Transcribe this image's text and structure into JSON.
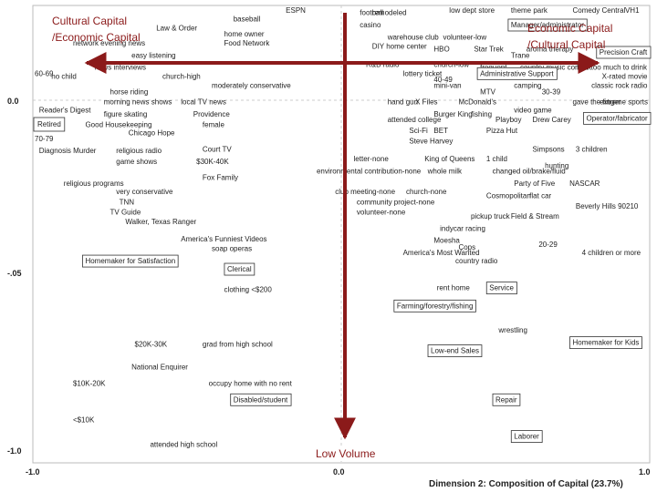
{
  "chart_data": {
    "type": "scatter",
    "xlabel": "Dimension 2: Composition of Capital (23.7%)",
    "xlim": [
      -1.0,
      1.0
    ],
    "ylim": [
      -1.0,
      0.15
    ],
    "x_ticks": [
      "-1.0",
      "0.0",
      "1.0"
    ],
    "y_ticks": [
      "0.0",
      "-.05",
      "-1.0"
    ],
    "grid": false,
    "colors": {
      "points": "#222222",
      "overlay": "#8b1a1a",
      "axes": "#bbbbbb"
    },
    "overlay_labels": {
      "top_left": [
        "Cultural Capital",
        "/Economic Capital"
      ],
      "top_right": [
        "Economic Capital",
        "/Cultural Capital"
      ],
      "bottom": "Low Volume"
    },
    "points": [
      {
        "label": "ESPN",
        "x": -0.18,
        "y": 0.145
      },
      {
        "label": "baseball",
        "x": -0.35,
        "y": 0.13
      },
      {
        "label": "Law & Order",
        "x": -0.6,
        "y": 0.115
      },
      {
        "label": "home owner",
        "x": -0.38,
        "y": 0.105
      },
      {
        "label": "network evening news",
        "x": -0.87,
        "y": 0.09
      },
      {
        "label": "Food Network",
        "x": -0.38,
        "y": 0.09
      },
      {
        "label": "easy listening",
        "x": -0.68,
        "y": 0.07
      },
      {
        "label": "news interviews",
        "x": -0.8,
        "y": 0.05
      },
      {
        "label": "60-69",
        "x": -1.03,
        "y": 0.04
      },
      {
        "label": "no child",
        "x": -0.94,
        "y": 0.035
      },
      {
        "label": "church-high",
        "x": -0.58,
        "y": 0.035
      },
      {
        "label": "moderately conservative",
        "x": -0.42,
        "y": 0.02
      },
      {
        "label": "horse riding",
        "x": -0.75,
        "y": 0.01
      },
      {
        "label": "morning news shows",
        "x": -0.77,
        "y": -0.005
      },
      {
        "label": "local TV news",
        "x": -0.52,
        "y": -0.005
      },
      {
        "label": "Reader's Digest",
        "x": -0.98,
        "y": -0.015
      },
      {
        "label": "figure skating",
        "x": -0.77,
        "y": -0.02
      },
      {
        "label": "Providence",
        "x": -0.48,
        "y": -0.02
      },
      {
        "label": "Good Housekeeping",
        "x": -0.83,
        "y": -0.033
      },
      {
        "label": "female",
        "x": -0.45,
        "y": -0.033
      },
      {
        "label": "Chicago Hope",
        "x": -0.69,
        "y": -0.043
      },
      {
        "label": "70-79",
        "x": -1.03,
        "y": -0.05
      },
      {
        "label": "Diagnosis Murder",
        "x": -0.98,
        "y": -0.065
      },
      {
        "label": "religious radio",
        "x": -0.73,
        "y": -0.065
      },
      {
        "label": "Court TV",
        "x": -0.45,
        "y": -0.063
      },
      {
        "label": "game shows",
        "x": -0.73,
        "y": -0.078
      },
      {
        "label": "$30K-40K",
        "x": -0.47,
        "y": -0.078
      },
      {
        "label": "environmental contribution-none",
        "x": -0.08,
        "y": -0.09
      },
      {
        "label": "Fox Family",
        "x": -0.45,
        "y": -0.098
      },
      {
        "label": "religious programs",
        "x": -0.9,
        "y": -0.105
      },
      {
        "label": "very conservative",
        "x": -0.73,
        "y": -0.115
      },
      {
        "label": "TNN",
        "x": -0.72,
        "y": -0.128
      },
      {
        "label": "TV Guide",
        "x": -0.75,
        "y": -0.14
      },
      {
        "label": "Walker, Texas Ranger",
        "x": -0.7,
        "y": -0.152
      },
      {
        "label": "America's Funniest Videos",
        "x": -0.52,
        "y": -0.173
      },
      {
        "label": "soap operas",
        "x": -0.42,
        "y": -0.185
      },
      {
        "label": "Homemaker for Satisfaction",
        "x": -0.83,
        "y": -0.2
      },
      {
        "label": "Clerical",
        "x": -0.37,
        "y": -0.21
      },
      {
        "label": "clothing <$200",
        "x": -0.38,
        "y": -0.235
      },
      {
        "label": "$20K-30K",
        "x": -0.67,
        "y": -0.302
      },
      {
        "label": "grad from high school",
        "x": -0.45,
        "y": -0.302
      },
      {
        "label": "National Enquirer",
        "x": -0.68,
        "y": -0.33
      },
      {
        "label": "$10K-20K",
        "x": -0.87,
        "y": -0.35
      },
      {
        "label": "occupy home with no rent",
        "x": -0.43,
        "y": -0.35
      },
      {
        "label": "Disabled/student",
        "x": -0.35,
        "y": -0.37
      },
      {
        "label": "<$10K",
        "x": -0.87,
        "y": -0.395
      },
      {
        "label": "attended high school",
        "x": -0.62,
        "y": -0.425
      },
      {
        "label": "football",
        "x": 0.06,
        "y": 0.14
      },
      {
        "label": "low dept store",
        "x": 0.35,
        "y": 0.15
      },
      {
        "label": "theme park",
        "x": 0.55,
        "y": 0.15
      },
      {
        "label": "Comedy Central",
        "x": 0.75,
        "y": 0.15
      },
      {
        "label": "VH1",
        "x": 0.92,
        "y": 0.15
      },
      {
        "label": "remodeled",
        "x": 0.1,
        "y": 0.14
      },
      {
        "label": "casino",
        "x": 0.06,
        "y": 0.12
      },
      {
        "label": "Manager/administrator",
        "x": 0.55,
        "y": 0.12
      },
      {
        "label": "warehouse club",
        "x": 0.15,
        "y": 0.1
      },
      {
        "label": "volunteer-low",
        "x": 0.33,
        "y": 0.1
      },
      {
        "label": "DIY home center",
        "x": 0.1,
        "y": 0.085
      },
      {
        "label": "HBO",
        "x": 0.3,
        "y": 0.08
      },
      {
        "label": "Star Trek",
        "x": 0.43,
        "y": 0.08
      },
      {
        "label": "aroma therapy",
        "x": 0.6,
        "y": 0.08
      },
      {
        "label": "Precision Craft",
        "x": 0.9,
        "y": 0.075
      },
      {
        "label": "Trane",
        "x": 0.55,
        "y": 0.07
      },
      {
        "label": "R&B radio",
        "x": 0.08,
        "y": 0.055
      },
      {
        "label": "church-low",
        "x": 0.3,
        "y": 0.055
      },
      {
        "label": "frequent",
        "x": 0.45,
        "y": 0.05
      },
      {
        "label": "country music concert",
        "x": 0.58,
        "y": 0.05
      },
      {
        "label": "had too much to drink",
        "x": 0.8,
        "y": 0.05
      },
      {
        "label": "lottery ticket",
        "x": 0.2,
        "y": 0.04
      },
      {
        "label": "Administrative Support",
        "x": 0.45,
        "y": 0.04
      },
      {
        "label": "X-rated movie",
        "x": 0.9,
        "y": 0.035
      },
      {
        "label": "mini-van",
        "x": 0.3,
        "y": 0.02
      },
      {
        "label": "camping",
        "x": 0.56,
        "y": 0.02
      },
      {
        "label": "classic rock radio",
        "x": 0.92,
        "y": 0.02
      },
      {
        "label": "MTV",
        "x": 0.45,
        "y": 0.01
      },
      {
        "label": "30-39",
        "x": 0.65,
        "y": 0.01
      },
      {
        "label": "40-49",
        "x": 0.3,
        "y": 0.03
      },
      {
        "label": "hand gun",
        "x": 0.15,
        "y": -0.005
      },
      {
        "label": "X Files",
        "x": 0.24,
        "y": -0.005
      },
      {
        "label": "McDonald's",
        "x": 0.38,
        "y": -0.005
      },
      {
        "label": "gave the finger",
        "x": 0.75,
        "y": -0.005
      },
      {
        "label": "extreme sports",
        "x": 0.95,
        "y": -0.005
      },
      {
        "label": "video game",
        "x": 0.56,
        "y": -0.015
      },
      {
        "label": "Burger King",
        "x": 0.3,
        "y": -0.02
      },
      {
        "label": "fishing",
        "x": 0.42,
        "y": -0.02
      },
      {
        "label": "attended college",
        "x": 0.15,
        "y": -0.027
      },
      {
        "label": "Playboy",
        "x": 0.5,
        "y": -0.027
      },
      {
        "label": "Drew Carey",
        "x": 0.62,
        "y": -0.027
      },
      {
        "label": "Operator/fabricator",
        "x": 0.92,
        "y": -0.025
      },
      {
        "label": "Sci-Fi",
        "x": 0.22,
        "y": -0.04
      },
      {
        "label": "BET",
        "x": 0.3,
        "y": -0.04
      },
      {
        "label": "Pizza Hut",
        "x": 0.47,
        "y": -0.04
      },
      {
        "label": "Steve Harvey",
        "x": 0.22,
        "y": -0.053
      },
      {
        "label": "Simpsons",
        "x": 0.62,
        "y": -0.063
      },
      {
        "label": "3 children",
        "x": 0.76,
        "y": -0.063
      },
      {
        "label": "letter-none",
        "x": 0.04,
        "y": -0.075
      },
      {
        "label": "King of Queens",
        "x": 0.27,
        "y": -0.075
      },
      {
        "label": "1 child",
        "x": 0.47,
        "y": -0.075
      },
      {
        "label": "hunting",
        "x": 0.66,
        "y": -0.083
      },
      {
        "label": "whole milk",
        "x": 0.28,
        "y": -0.09
      },
      {
        "label": "changed oil/brake/fluid",
        "x": 0.49,
        "y": -0.09
      },
      {
        "label": "Party of Five",
        "x": 0.56,
        "y": -0.105
      },
      {
        "label": "NASCAR",
        "x": 0.74,
        "y": -0.105
      },
      {
        "label": "club meeting-none",
        "x": -0.02,
        "y": -0.115
      },
      {
        "label": "church-none",
        "x": 0.21,
        "y": -0.115
      },
      {
        "label": "Cosmopolitan",
        "x": 0.47,
        "y": -0.12
      },
      {
        "label": "flat car",
        "x": 0.61,
        "y": -0.12
      },
      {
        "label": "community project-none",
        "x": 0.05,
        "y": -0.128
      },
      {
        "label": "Beverly Hills 90210",
        "x": 0.76,
        "y": -0.133
      },
      {
        "label": "volunteer-none",
        "x": 0.05,
        "y": -0.14
      },
      {
        "label": "pickup truck",
        "x": 0.42,
        "y": -0.145
      },
      {
        "label": "Field & Stream",
        "x": 0.55,
        "y": -0.145
      },
      {
        "label": "indycar racing",
        "x": 0.32,
        "y": -0.16
      },
      {
        "label": "Moesha",
        "x": 0.3,
        "y": -0.175
      },
      {
        "label": "Cops",
        "x": 0.38,
        "y": -0.183
      },
      {
        "label": "20-29",
        "x": 0.64,
        "y": -0.18
      },
      {
        "label": "America's Most Wanted",
        "x": 0.2,
        "y": -0.19
      },
      {
        "label": "4 children or more",
        "x": 0.78,
        "y": -0.19
      },
      {
        "label": "country radio",
        "x": 0.37,
        "y": -0.2
      },
      {
        "label": "rent home",
        "x": 0.31,
        "y": -0.233
      },
      {
        "label": "Service",
        "x": 0.48,
        "y": -0.233
      },
      {
        "label": "Farming/forestry/fishing",
        "x": 0.18,
        "y": -0.255
      },
      {
        "label": "wrestling",
        "x": 0.51,
        "y": -0.285
      },
      {
        "label": "Homemaker for Kids",
        "x": 0.75,
        "y": -0.3
      },
      {
        "label": "Low-end Sales",
        "x": 0.29,
        "y": -0.31
      },
      {
        "label": "Repair",
        "x": 0.5,
        "y": -0.37
      },
      {
        "label": "Laborer",
        "x": 0.56,
        "y": -0.415
      }
    ],
    "boxed_labels": [
      "Retired",
      "Manager/administrator",
      "Precision Craft",
      "Administrative Support",
      "Operator/fabricator",
      "Homemaker for Satisfaction",
      "Clerical",
      "Service",
      "Farming/forestry/fishing",
      "Homemaker for Kids",
      "Low-end Sales",
      "Disabled/student",
      "Repair",
      "Laborer"
    ],
    "retired": {
      "label": "Retired",
      "x": -1.0,
      "y": -0.035
    }
  }
}
